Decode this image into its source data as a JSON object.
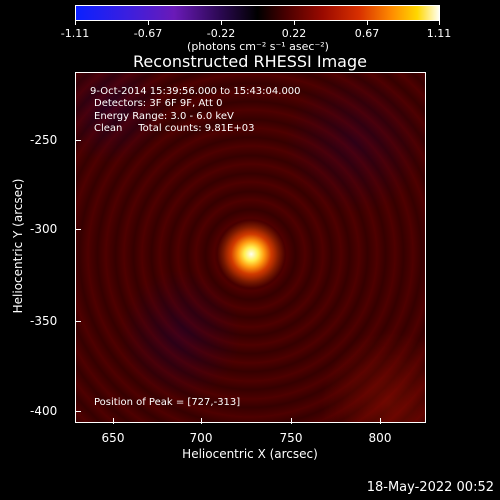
{
  "colorbar": {
    "ticks": [
      "-1.11",
      "-0.67",
      "-0.22",
      "0.22",
      "0.67",
      "1.11"
    ],
    "unit": "(photons cm⁻² s⁻¹ asec⁻²)"
  },
  "title": "Reconstructed RHESSI Image",
  "info": {
    "time": "9-Oct-2014 15:39:56.000 to 15:43:04.000",
    "detectors": "Detectors: 3F 6F 9F, Att 0",
    "energy": "Energy Range: 3.0 - 6.0 keV",
    "clean": "Clean     Total counts: 9.81E+03",
    "peak": "Position of Peak = [727,-313]"
  },
  "axes": {
    "xlabel": "Heliocentric X (arcsec)",
    "ylabel": "Heliocentric Y (arcsec)",
    "xticks": [
      "650",
      "700",
      "750",
      "800"
    ],
    "yticks": [
      "-250",
      "-300",
      "-350",
      "-400"
    ]
  },
  "footer": {
    "timestamp": "18-May-2022 00:52"
  }
}
